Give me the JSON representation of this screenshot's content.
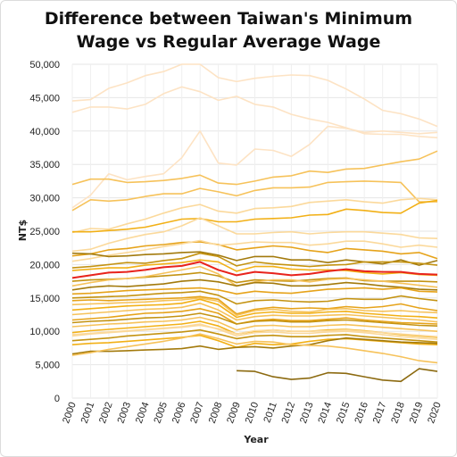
{
  "chart_data": {
    "type": "line",
    "title": "Difference between Taiwan's Minimum Wage vs Regular Average Wage",
    "title_lines": [
      "Difference between Taiwan's Minimum",
      "Wage vs Regular Average Wage"
    ],
    "xlabel": "Year",
    "ylabel": "NT$",
    "x": [
      2000,
      2001,
      2002,
      2003,
      2004,
      2005,
      2006,
      2007,
      2008,
      2009,
      2010,
      2011,
      2012,
      2013,
      2014,
      2015,
      2016,
      2017,
      2018,
      2019,
      2020
    ],
    "ylim": [
      0,
      50000
    ],
    "yticks": [
      0,
      5000,
      10000,
      15000,
      20000,
      25000,
      30000,
      35000,
      40000,
      45000,
      50000
    ],
    "ytick_labels": [
      "0",
      "5,000",
      "10,000",
      "15,000",
      "20,000",
      "25,000",
      "30,000",
      "35,000",
      "40,000",
      "45,000",
      "50,000"
    ],
    "grid": true,
    "legend": "none",
    "highlight_color": "#e8231c",
    "series": [
      {
        "color": "#fde3c4",
        "values": [
          42800,
          43600,
          43600,
          43300,
          44000,
          45600,
          46600,
          45900,
          44600,
          45200,
          44000,
          43600,
          42500,
          41800,
          41300,
          40500,
          39600,
          39500,
          39500,
          39200,
          39000
        ]
      },
      {
        "color": "#fde3c4",
        "values": [
          44500,
          44700,
          46400,
          47200,
          48300,
          48900,
          50000,
          50000,
          48000,
          47400,
          47900,
          48200,
          48400,
          48300,
          47600,
          46300,
          44800,
          43100,
          42600,
          41800,
          40700
        ]
      },
      {
        "color": "#fde3c4",
        "values": [
          28500,
          30400,
          33600,
          32700,
          33200,
          33600,
          36000,
          40000,
          35200,
          34900,
          37300,
          37100,
          36200,
          38000,
          40700,
          40400,
          39800,
          40000,
          39800,
          39600,
          39800
        ]
      },
      {
        "color": "#f6c25a",
        "values": [
          32000,
          32800,
          32800,
          32300,
          32400,
          32600,
          32900,
          33400,
          32200,
          32000,
          32500,
          33100,
          33300,
          34000,
          33800,
          34300,
          34400,
          34900,
          35400,
          35800,
          37000
        ]
      },
      {
        "color": "#f6c25a",
        "values": [
          28100,
          29700,
          29500,
          29700,
          30200,
          30600,
          30600,
          31400,
          30900,
          30300,
          31100,
          31500,
          31500,
          31600,
          32300,
          32400,
          32500,
          32400,
          32300,
          29400,
          29400
        ]
      },
      {
        "color": "#fbd99b",
        "values": [
          24800,
          25400,
          25300,
          26100,
          26800,
          27700,
          28500,
          29000,
          28000,
          27700,
          28400,
          28500,
          28700,
          29300,
          29500,
          29700,
          29400,
          29200,
          29700,
          29900,
          29700
        ]
      },
      {
        "color": "#f2b016",
        "values": [
          24900,
          24900,
          25100,
          25300,
          25600,
          26200,
          26800,
          26900,
          26400,
          26400,
          26800,
          26900,
          27000,
          27400,
          27500,
          28300,
          28100,
          27800,
          27700,
          29200,
          29600
        ]
      },
      {
        "color": "#fbd99b",
        "values": [
          22000,
          22300,
          23200,
          23900,
          24500,
          24900,
          25800,
          27000,
          25800,
          24600,
          24600,
          24800,
          24900,
          24600,
          24800,
          24900,
          24900,
          24700,
          24500,
          24000,
          23900
        ]
      },
      {
        "color": "#e6a31a",
        "values": [
          21300,
          21600,
          22200,
          22400,
          22800,
          23000,
          23300,
          23400,
          23000,
          22200,
          22500,
          22800,
          22600,
          22100,
          21800,
          22400,
          22200,
          22000,
          21600,
          21800,
          20900
        ]
      },
      {
        "color": "#fbd99b",
        "values": [
          20500,
          20900,
          21400,
          21800,
          22200,
          22700,
          23100,
          23600,
          22900,
          23100,
          23400,
          23300,
          23300,
          22900,
          23100,
          23500,
          23500,
          23100,
          22600,
          22900,
          22600
        ]
      },
      {
        "color": "#a37a0c",
        "values": [
          21700,
          21600,
          21200,
          21300,
          21500,
          21600,
          21800,
          21900,
          21400,
          20600,
          21200,
          21200,
          20700,
          20700,
          20300,
          20700,
          20400,
          20100,
          20700,
          19900,
          20600
        ]
      },
      {
        "color": "#e8231c",
        "values": [
          18000,
          18400,
          18800,
          18900,
          19200,
          19600,
          19800,
          20400,
          19200,
          18400,
          18900,
          18700,
          18400,
          18600,
          19000,
          19300,
          19000,
          18900,
          18900,
          18600,
          18500
        ]
      },
      {
        "color": "#c49312",
        "values": [
          19500,
          19700,
          20000,
          20300,
          20200,
          20600,
          20900,
          21700,
          21200,
          19800,
          20400,
          20100,
          19900,
          19700,
          19900,
          20000,
          20400,
          20400,
          20400,
          20200,
          19900
        ]
      },
      {
        "color": "#f2b016",
        "values": [
          19100,
          19300,
          19500,
          19500,
          19900,
          20100,
          20300,
          20700,
          20400,
          19000,
          19700,
          19700,
          19300,
          19200,
          19200,
          19100,
          18800,
          18600,
          18800,
          18500,
          18400
        ]
      },
      {
        "color": "#c49312",
        "values": [
          17500,
          17700,
          17800,
          17900,
          18100,
          18300,
          18500,
          18800,
          18300,
          17300,
          17700,
          17600,
          17500,
          17700,
          17900,
          18000,
          17600,
          17500,
          17500,
          17500,
          17400
        ]
      },
      {
        "color": "#f6c25a",
        "values": [
          16800,
          17300,
          17700,
          17900,
          18200,
          18700,
          19200,
          19700,
          18600,
          16800,
          17400,
          17700,
          17700,
          17400,
          17800,
          17900,
          17700,
          17500,
          17200,
          16900,
          16600
        ]
      },
      {
        "color": "#a37a0c",
        "values": [
          16200,
          16600,
          16800,
          16700,
          16900,
          17100,
          17500,
          17700,
          17400,
          16800,
          17300,
          17200,
          16800,
          16800,
          17000,
          17300,
          17100,
          16800,
          16600,
          16300,
          16200
        ]
      },
      {
        "color": "#e6a31a",
        "values": [
          15600,
          15700,
          15900,
          16100,
          16200,
          16300,
          16400,
          16500,
          16200,
          15600,
          16000,
          15800,
          15700,
          16000,
          16300,
          16400,
          16500,
          16300,
          16500,
          16000,
          15900
        ]
      },
      {
        "color": "#c49312",
        "values": [
          15000,
          15100,
          15200,
          15300,
          15500,
          15700,
          15800,
          16000,
          15400,
          14100,
          14600,
          14700,
          14500,
          14400,
          14500,
          14900,
          14800,
          14800,
          15300,
          14900,
          14600
        ]
      },
      {
        "color": "#e6a31a",
        "values": [
          14600,
          14700,
          14600,
          14700,
          14800,
          14900,
          15000,
          15200,
          14800,
          12600,
          13300,
          13600,
          13400,
          13500,
          13400,
          13700,
          13500,
          13700,
          14100,
          13500,
          13100
        ]
      },
      {
        "color": "#f6c25a",
        "values": [
          14000,
          14100,
          14200,
          14300,
          14400,
          14600,
          14700,
          15000,
          14500,
          12400,
          13100,
          13300,
          13000,
          12900,
          13300,
          13400,
          13100,
          13000,
          13100,
          12900,
          12800
        ]
      },
      {
        "color": "#f2b016",
        "values": [
          13200,
          13400,
          13600,
          13800,
          13900,
          14000,
          14200,
          14800,
          14000,
          12100,
          12700,
          12900,
          12700,
          12700,
          12900,
          13000,
          12700,
          12500,
          12300,
          12200,
          12000
        ]
      },
      {
        "color": "#f6c25a",
        "values": [
          12500,
          12700,
          12900,
          13100,
          13300,
          13400,
          13600,
          14200,
          13200,
          11700,
          12200,
          12400,
          12300,
          12300,
          12400,
          12500,
          12300,
          12100,
          11900,
          11700,
          11400
        ]
      },
      {
        "color": "#e6a31a",
        "values": [
          11700,
          11900,
          12100,
          12400,
          12700,
          12800,
          13000,
          13400,
          12700,
          11100,
          11600,
          11800,
          11600,
          11600,
          11800,
          12000,
          11700,
          11500,
          11300,
          11200,
          11100
        ]
      },
      {
        "color": "#c49312",
        "values": [
          11300,
          11500,
          11600,
          11800,
          12000,
          12100,
          12300,
          12700,
          12100,
          11100,
          11500,
          11600,
          11400,
          11400,
          11600,
          11700,
          11500,
          11300,
          11100,
          10900,
          10800
        ]
      },
      {
        "color": "#f6c25a",
        "values": [
          10700,
          10900,
          11100,
          11200,
          11400,
          11500,
          11700,
          12100,
          11400,
          10200,
          10800,
          10900,
          10700,
          10700,
          10900,
          11000,
          10800,
          10600,
          10400,
          10200,
          10000
        ]
      },
      {
        "color": "#f2b016",
        "values": [
          9800,
          10100,
          10300,
          10500,
          10700,
          10900,
          11100,
          11500,
          10800,
          9600,
          10000,
          10200,
          10000,
          10000,
          10200,
          10300,
          10100,
          9800,
          9500,
          9300,
          9100
        ]
      },
      {
        "color": "#fbd99b",
        "values": [
          9500,
          9700,
          9900,
          10100,
          10300,
          10500,
          10700,
          11100,
          10300,
          9300,
          9800,
          9900,
          9700,
          9700,
          9900,
          10000,
          9800,
          9500,
          9200,
          9000,
          8800
        ]
      },
      {
        "color": "#c49312",
        "values": [
          8600,
          8800,
          9000,
          9300,
          9500,
          9700,
          9900,
          10200,
          9600,
          8900,
          9300,
          9400,
          9200,
          9200,
          9400,
          9500,
          9200,
          9000,
          8800,
          8600,
          8400
        ]
      },
      {
        "color": "#f2b016",
        "values": [
          8000,
          8200,
          8300,
          8500,
          8700,
          8900,
          9100,
          9400,
          8600,
          7600,
          8200,
          8000,
          8100,
          8500,
          8800,
          8900,
          8700,
          8500,
          8300,
          8100,
          8000
        ]
      },
      {
        "color": "#a37a0c",
        "values": [
          6600,
          7000,
          7000,
          7100,
          7200,
          7300,
          7400,
          7800,
          7300,
          7600,
          7700,
          7500,
          7800,
          8000,
          8600,
          9000,
          8800,
          8600,
          8400,
          8300,
          8200
        ]
      },
      {
        "color": "#f6c25a",
        "values": [
          6400,
          6800,
          7300,
          7700,
          8100,
          8500,
          9000,
          9600,
          8900,
          8100,
          8500,
          8400,
          8000,
          7900,
          7800,
          7500,
          7100,
          6700,
          6200,
          5600,
          5300
        ]
      },
      {
        "color": "#fbd99b",
        "values": [
          9300,
          9600,
          9800,
          10000,
          10200,
          10400,
          10600,
          10900,
          10400,
          9600,
          10100,
          10200,
          10000,
          10000,
          10100,
          10200,
          10000,
          9800,
          9600,
          9400,
          9200
        ]
      },
      {
        "color": "#8c6a10",
        "values": [
          null,
          null,
          null,
          null,
          null,
          null,
          null,
          null,
          null,
          4100,
          4000,
          3200,
          2800,
          3000,
          3800,
          3700,
          3200,
          2700,
          2500,
          4400,
          4000
        ]
      }
    ]
  }
}
